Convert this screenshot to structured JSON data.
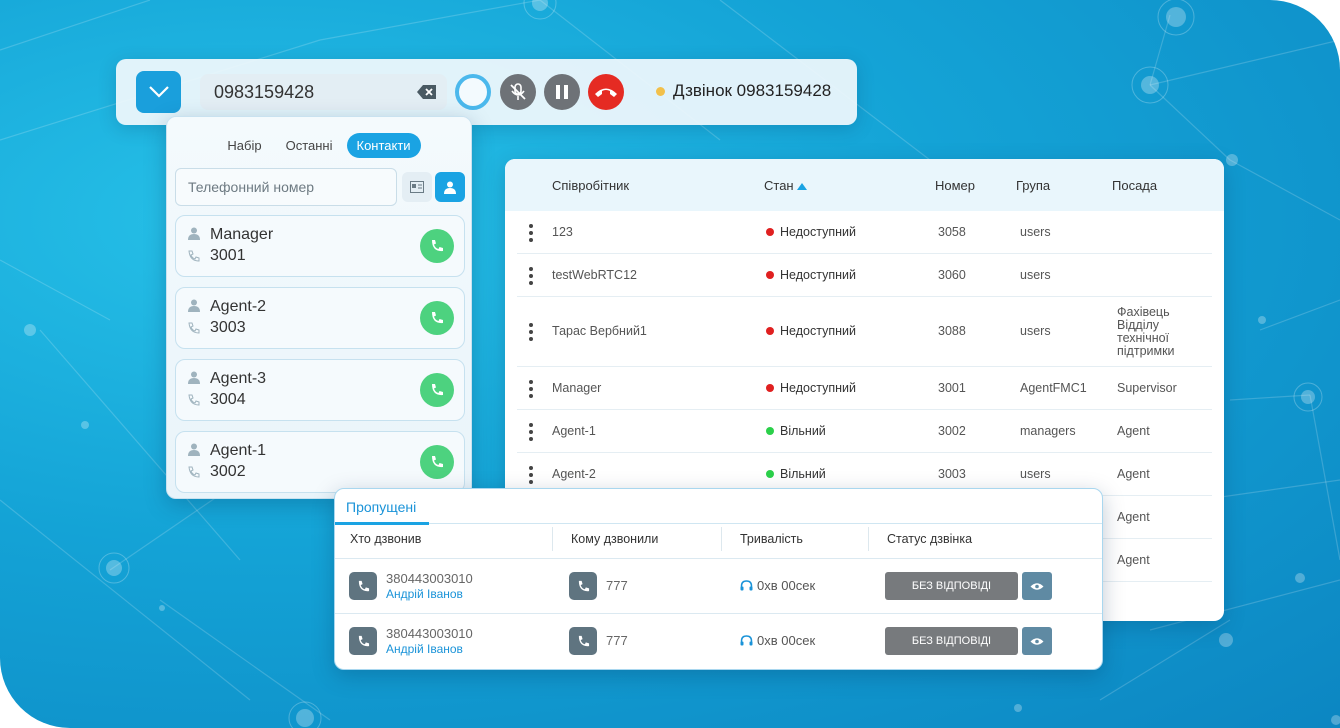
{
  "colors": {
    "accent": "#1aa3e3",
    "green": "#4dd27f",
    "red": "#e52b23",
    "status_unavailable": "#e02020",
    "status_free": "#2bd04a"
  },
  "callbar": {
    "number": "0983159428",
    "status_text": "Дзвінок 0983159428",
    "icons": [
      "chevron-down-icon",
      "backspace-icon",
      "record-icon",
      "mic-off-icon",
      "pause-icon",
      "hangup-icon"
    ]
  },
  "contacts": {
    "tabs": [
      "Набір",
      "Останні",
      "Контакти"
    ],
    "active_tab": "Контакти",
    "search_placeholder": "Телефонний номер",
    "items": [
      {
        "name": "Manager",
        "ext": "3001"
      },
      {
        "name": "Agent-2",
        "ext": "3003"
      },
      {
        "name": "Agent-3",
        "ext": "3004"
      },
      {
        "name": "Agent-1",
        "ext": "3002"
      }
    ]
  },
  "employees": {
    "headers": {
      "employee": "Співробітник",
      "state": "Стан",
      "number": "Номер",
      "group": "Група",
      "position": "Посада"
    },
    "sort": "Стан ascending",
    "rows": [
      {
        "employee": "123",
        "state": "Недоступний",
        "status": "unavailable",
        "number": "3058",
        "group": "users",
        "position": ""
      },
      {
        "employee": "testWebRTC12",
        "state": "Недоступний",
        "status": "unavailable",
        "number": "3060",
        "group": "users",
        "position": ""
      },
      {
        "employee": "Тарас Вербний1",
        "state": "Недоступний",
        "status": "unavailable",
        "number": "3088",
        "group": "users",
        "position_lines": [
          "Фахівець",
          "Відділу",
          "технічної",
          "підтримки"
        ]
      },
      {
        "employee": "Manager",
        "state": "Недоступний",
        "status": "unavailable",
        "number": "3001",
        "group": "AgentFMC1",
        "position": "Supervisor"
      },
      {
        "employee": "Agent-1",
        "state": "Вільний",
        "status": "free",
        "number": "3002",
        "group": "managers",
        "position": "Agent"
      },
      {
        "employee": "Agent-2",
        "state": "Вільний",
        "status": "free",
        "number": "3003",
        "group": "users",
        "position": "Agent"
      }
    ],
    "extra_positions": [
      "Agent",
      "Agent"
    ]
  },
  "missed": {
    "title": "Пропущені",
    "headers": {
      "caller": "Хто дзвонив",
      "callee": "Кому дзвонили",
      "duration": "Тривалість",
      "status": "Статус дзвінка"
    },
    "rows": [
      {
        "number": "380443003010",
        "name": "Андрій Іванов",
        "to": "777",
        "duration": "0хв 00сек",
        "status": "БЕЗ ВІДПОВІДІ"
      },
      {
        "number": "380443003010",
        "name": "Андрій Іванов",
        "to": "777",
        "duration": "0хв 00сек",
        "status": "БЕЗ ВІДПОВІДІ"
      }
    ]
  }
}
